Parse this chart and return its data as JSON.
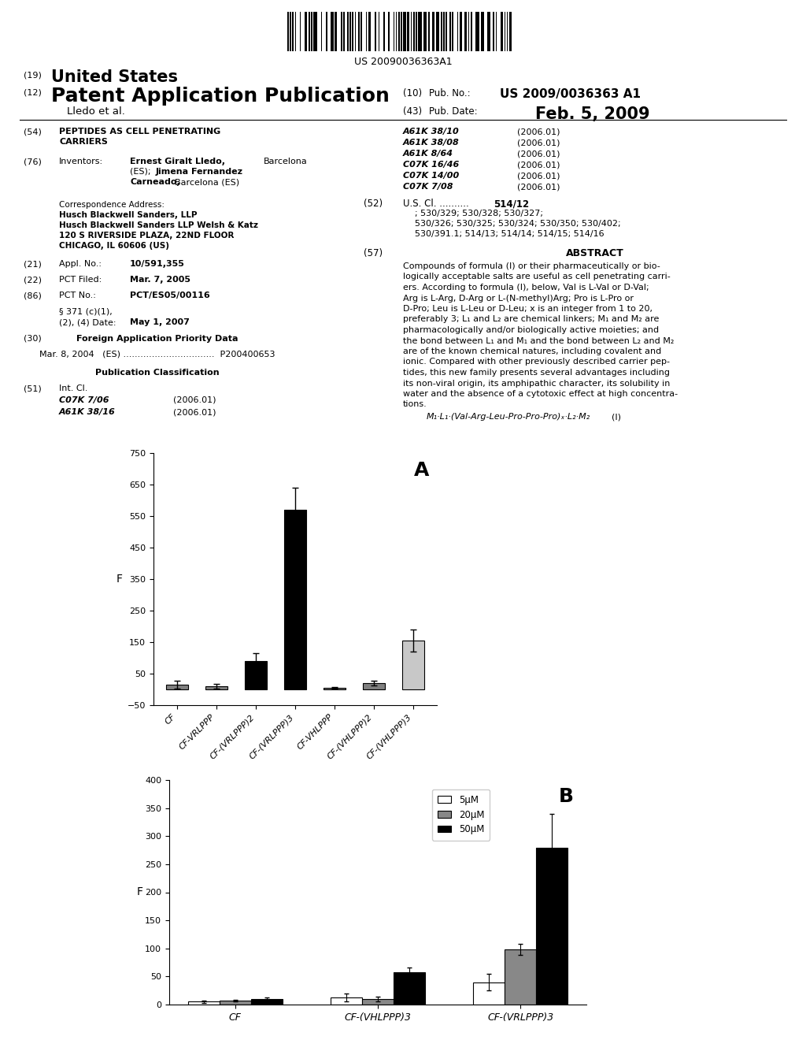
{
  "chart_A": {
    "title": "A",
    "ylabel": "F",
    "ylim": [
      -50,
      750
    ],
    "yticks": [
      -50,
      50,
      150,
      250,
      350,
      450,
      550,
      650,
      750
    ],
    "categories": [
      "CF",
      "CF-VRLPPP",
      "CF-(VRLPPP)2",
      "CF-(VRLPPP)3",
      "CF-VHLPPP",
      "CF-(VHLPPP)2",
      "CF-(VHLPPP)3"
    ],
    "values": [
      15,
      10,
      90,
      570,
      5,
      20,
      155
    ],
    "errors": [
      12,
      8,
      25,
      70,
      3,
      8,
      35
    ],
    "bar_colors": [
      "#808080",
      "#808080",
      "#000000",
      "#000000",
      "#808080",
      "#808080",
      "#c8c8c8"
    ],
    "bar_edgecolors": [
      "#000000",
      "#000000",
      "#000000",
      "#000000",
      "#000000",
      "#000000",
      "#000000"
    ]
  },
  "chart_B": {
    "title": "B",
    "ylabel": "F",
    "ylim": [
      0,
      400
    ],
    "yticks": [
      0,
      50,
      100,
      150,
      200,
      250,
      300,
      350,
      400
    ],
    "categories": [
      "CF",
      "CF-(VHLPPP)3",
      "CF-(VRLPPP)3"
    ],
    "legend_labels": [
      "5μM",
      "20μM",
      "50μM"
    ],
    "legend_colors": [
      "#ffffff",
      "#888888",
      "#000000"
    ],
    "values_5uM": [
      5,
      12,
      40
    ],
    "values_20uM": [
      7,
      10,
      98
    ],
    "values_50uM": [
      10,
      58,
      280
    ],
    "errors_5uM": [
      2,
      7,
      15
    ],
    "errors_20uM": [
      2,
      4,
      10
    ],
    "errors_50uM": [
      3,
      8,
      60
    ]
  },
  "background_color": "#ffffff",
  "text_color": "#000000"
}
